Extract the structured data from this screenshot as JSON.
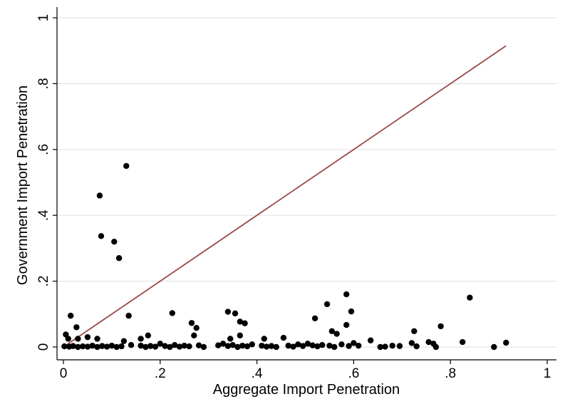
{
  "chart_data": {
    "type": "scatter",
    "title": "",
    "xlabel": "Aggregate Import Penetration",
    "ylabel": "Government Import Penetration",
    "xlim": [
      0,
      1
    ],
    "ylim": [
      0,
      1
    ],
    "xticks": [
      0,
      0.2,
      0.4,
      0.6,
      0.8,
      1
    ],
    "yticks": [
      0,
      0.2,
      0.4,
      0.6,
      0.8,
      1
    ],
    "xtick_labels": [
      "0",
      ".2",
      ".4",
      ".6",
      ".8",
      "1"
    ],
    "ytick_labels": [
      "0",
      ".2",
      ".4",
      ".6",
      ".8",
      "1"
    ],
    "grid": "horizontal",
    "legend": "none",
    "colors": {
      "points": "#000000",
      "line": "#9b4a4a",
      "grid": "#e3e3e3",
      "axis": "#000000"
    },
    "reference_line": {
      "x": [
        0,
        0.915
      ],
      "y": [
        0,
        0.915
      ],
      "label": ""
    },
    "points": [
      [
        0.13,
        0.55
      ],
      [
        0.075,
        0.46
      ],
      [
        0.078,
        0.337
      ],
      [
        0.105,
        0.32
      ],
      [
        0.115,
        0.27
      ],
      [
        0.015,
        0.095
      ],
      [
        0.027,
        0.06
      ],
      [
        0.005,
        0.038
      ],
      [
        0.01,
        0.025
      ],
      [
        0.03,
        0.025
      ],
      [
        0.05,
        0.03
      ],
      [
        0.07,
        0.025
      ],
      [
        0.135,
        0.095
      ],
      [
        0.225,
        0.103
      ],
      [
        0.265,
        0.073
      ],
      [
        0.275,
        0.058
      ],
      [
        0.27,
        0.035
      ],
      [
        0.175,
        0.035
      ],
      [
        0.16,
        0.025
      ],
      [
        0.34,
        0.107
      ],
      [
        0.355,
        0.102
      ],
      [
        0.365,
        0.077
      ],
      [
        0.375,
        0.072
      ],
      [
        0.365,
        0.035
      ],
      [
        0.345,
        0.025
      ],
      [
        0.415,
        0.025
      ],
      [
        0.455,
        0.028
      ],
      [
        0.52,
        0.087
      ],
      [
        0.545,
        0.13
      ],
      [
        0.555,
        0.048
      ],
      [
        0.565,
        0.04
      ],
      [
        0.585,
        0.16
      ],
      [
        0.595,
        0.108
      ],
      [
        0.585,
        0.067
      ],
      [
        0.635,
        0.02
      ],
      [
        0.725,
        0.048
      ],
      [
        0.78,
        0.063
      ],
      [
        0.84,
        0.15
      ],
      [
        0.825,
        0.015
      ],
      [
        0.915,
        0.013
      ],
      [
        0.89,
        0.0
      ],
      [
        0.655,
        0.0
      ],
      [
        0.695,
        0.003
      ],
      [
        0.765,
        0.01
      ],
      [
        0.002,
        0.002
      ],
      [
        0.012,
        0.001
      ],
      [
        0.02,
        0.003
      ],
      [
        0.03,
        0.0
      ],
      [
        0.04,
        0.002
      ],
      [
        0.05,
        0.001
      ],
      [
        0.06,
        0.004
      ],
      [
        0.07,
        0.0
      ],
      [
        0.08,
        0.003
      ],
      [
        0.09,
        0.001
      ],
      [
        0.1,
        0.004
      ],
      [
        0.11,
        0.0
      ],
      [
        0.12,
        0.002
      ],
      [
        0.125,
        0.018
      ],
      [
        0.14,
        0.006
      ],
      [
        0.16,
        0.004
      ],
      [
        0.17,
        0.0
      ],
      [
        0.18,
        0.003
      ],
      [
        0.19,
        0.001
      ],
      [
        0.2,
        0.01
      ],
      [
        0.21,
        0.003
      ],
      [
        0.22,
        0.0
      ],
      [
        0.23,
        0.006
      ],
      [
        0.24,
        0.001
      ],
      [
        0.25,
        0.004
      ],
      [
        0.26,
        0.002
      ],
      [
        0.28,
        0.005
      ],
      [
        0.29,
        0.0
      ],
      [
        0.32,
        0.005
      ],
      [
        0.33,
        0.01
      ],
      [
        0.34,
        0.003
      ],
      [
        0.35,
        0.006
      ],
      [
        0.36,
        0.0
      ],
      [
        0.37,
        0.004
      ],
      [
        0.38,
        0.002
      ],
      [
        0.39,
        0.008
      ],
      [
        0.41,
        0.004
      ],
      [
        0.42,
        0.001
      ],
      [
        0.43,
        0.003
      ],
      [
        0.44,
        0.0
      ],
      [
        0.465,
        0.004
      ],
      [
        0.475,
        0.001
      ],
      [
        0.485,
        0.008
      ],
      [
        0.495,
        0.003
      ],
      [
        0.505,
        0.01
      ],
      [
        0.515,
        0.005
      ],
      [
        0.525,
        0.002
      ],
      [
        0.535,
        0.006
      ],
      [
        0.55,
        0.004
      ],
      [
        0.56,
        0.0
      ],
      [
        0.575,
        0.008
      ],
      [
        0.59,
        0.003
      ],
      [
        0.6,
        0.012
      ],
      [
        0.61,
        0.004
      ],
      [
        0.665,
        0.001
      ],
      [
        0.68,
        0.004
      ],
      [
        0.72,
        0.012
      ],
      [
        0.73,
        0.002
      ],
      [
        0.755,
        0.015
      ],
      [
        0.77,
        0.0
      ]
    ]
  }
}
